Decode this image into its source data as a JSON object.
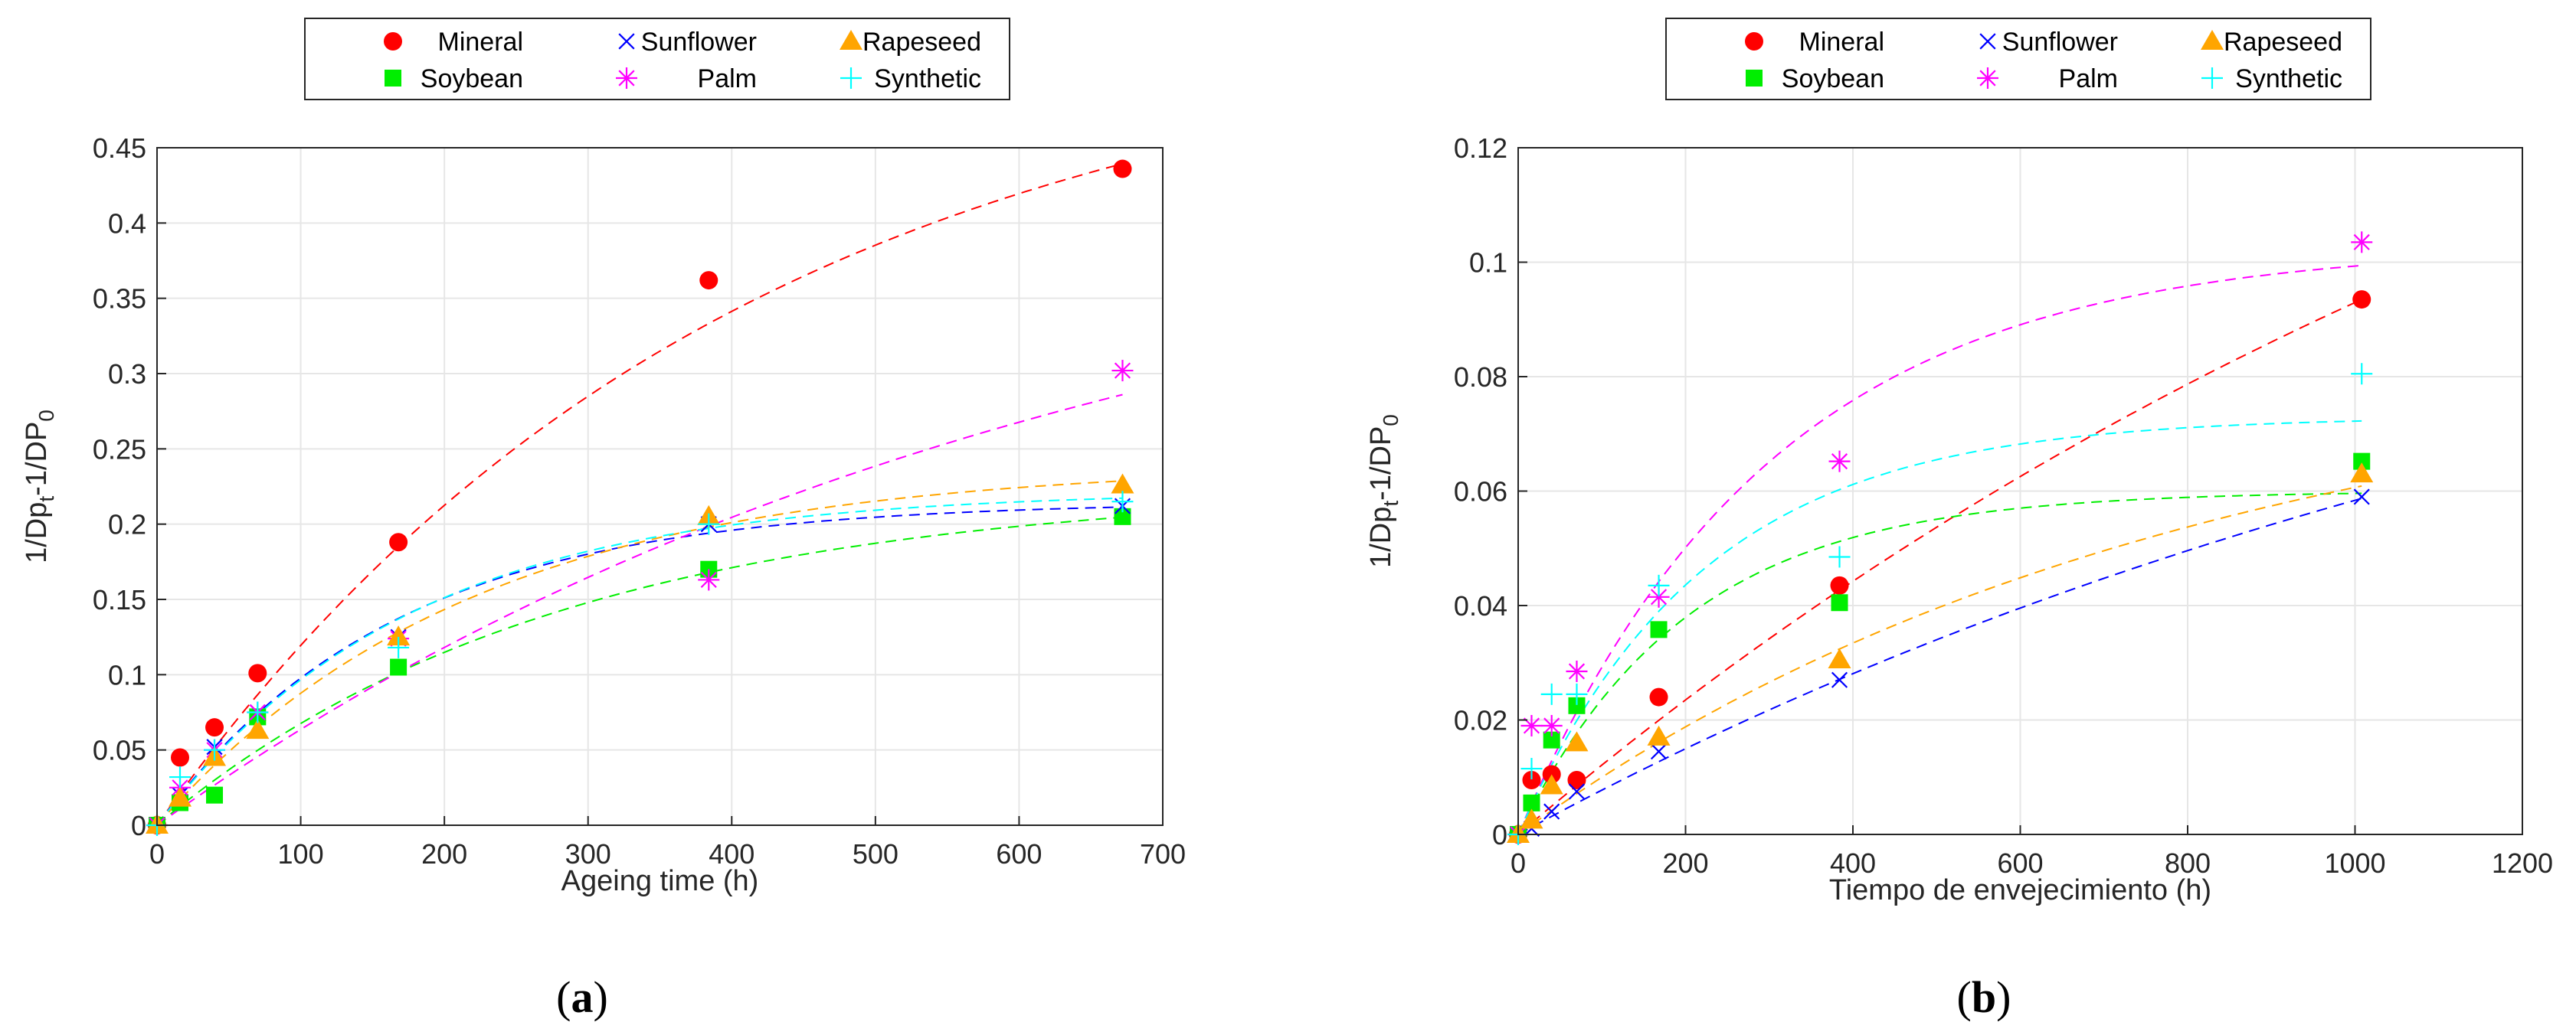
{
  "chart_data": [
    {
      "type": "scatter",
      "panel_label": "(a)",
      "panel_label_letter": "a",
      "xlabel": "Ageing time (h)",
      "ylabel_parts": [
        "1/Dp",
        "t",
        "-1/DP",
        "0"
      ],
      "xlim": [
        0,
        700
      ],
      "ylim": [
        0,
        0.45
      ],
      "xticks": [
        0,
        100,
        200,
        300,
        400,
        500,
        600,
        700
      ],
      "xtick_labels": [
        "0",
        "100",
        "200",
        "300",
        "400",
        "500",
        "600",
        "700"
      ],
      "yticks": [
        0,
        0.05,
        0.1,
        0.15,
        0.2,
        0.25,
        0.3,
        0.35,
        0.4,
        0.45
      ],
      "ytick_labels": [
        "0",
        "0.05",
        "0.1",
        "0.15",
        "0.2",
        "0.25",
        "0.3",
        "0.35",
        "0.4",
        "0.45"
      ],
      "grid": true,
      "legend_position": "top-outside",
      "series": [
        {
          "name": "Mineral",
          "marker": "circle",
          "color": "#ff0000",
          "x": [
            0,
            16,
            40,
            70,
            168,
            384,
            672
          ],
          "y": [
            0,
            0.045,
            0.065,
            0.101,
            0.188,
            0.362,
            0.436
          ],
          "fit_a": 0.54,
          "fit_tau": 400
        },
        {
          "name": "Soybean",
          "marker": "square",
          "color": "#00ee00",
          "x": [
            0,
            16,
            40,
            70,
            168,
            384,
            672
          ],
          "y": [
            0,
            0.015,
            0.02,
            0.072,
            0.105,
            0.17,
            0.205
          ],
          "fit_a": 0.225,
          "fit_tau": 280
        },
        {
          "name": "Sunflower",
          "marker": "x",
          "color": "#0000ff",
          "x": [
            0,
            16,
            40,
            70,
            168,
            384,
            672
          ],
          "y": [
            0,
            0.02,
            0.052,
            0.075,
            0.125,
            0.2,
            0.212
          ],
          "fit_a": 0.215,
          "fit_tau": 165
        },
        {
          "name": "Palm",
          "marker": "asterisk",
          "color": "#ff00ff",
          "x": [
            0,
            16,
            40,
            70,
            168,
            384,
            672
          ],
          "y": [
            0,
            0.025,
            0.05,
            0.075,
            0.124,
            0.163,
            0.302
          ],
          "fit_a": 0.44,
          "fit_tau": 640
        },
        {
          "name": "Rapeseed",
          "marker": "triangle",
          "color": "#ffa500",
          "x": [
            0,
            16,
            40,
            70,
            168,
            384,
            672
          ],
          "y": [
            0,
            0.018,
            0.045,
            0.063,
            0.125,
            0.205,
            0.226
          ],
          "fit_a": 0.24,
          "fit_tau": 220
        },
        {
          "name": "Synthetic",
          "marker": "plus",
          "color": "#00ffff",
          "x": [
            0,
            16,
            40,
            70,
            168,
            384,
            672
          ],
          "y": [
            0,
            0.032,
            0.05,
            0.075,
            0.118,
            0.2,
            0.215
          ],
          "fit_a": 0.222,
          "fit_tau": 175
        }
      ]
    },
    {
      "type": "scatter",
      "panel_label": "(b)",
      "panel_label_letter": "b",
      "xlabel": "Tiempo de envejecimiento (h)",
      "ylabel_parts": [
        "1/Dp",
        "t",
        "-1/DP",
        "0"
      ],
      "xlim": [
        0,
        1200
      ],
      "ylim": [
        0,
        0.12
      ],
      "xticks": [
        0,
        200,
        400,
        600,
        800,
        1000,
        1200
      ],
      "xtick_labels": [
        "0",
        "200",
        "400",
        "600",
        "800",
        "1000",
        "1200"
      ],
      "yticks": [
        0,
        0.02,
        0.04,
        0.06,
        0.08,
        0.1,
        0.12
      ],
      "ytick_labels": [
        "0",
        "0.02",
        "0.04",
        "0.06",
        "0.08",
        "0.1",
        "0.12"
      ],
      "grid": true,
      "legend_position": "top-outside",
      "series": [
        {
          "name": "Mineral",
          "marker": "circle",
          "color": "#ff0000",
          "x": [
            0,
            16,
            40,
            70,
            168,
            384,
            1008
          ],
          "y": [
            0,
            0.0095,
            0.0105,
            0.0095,
            0.024,
            0.0435,
            0.0935
          ],
          "fit_a": 0.2,
          "fit_tau": 1600
        },
        {
          "name": "Soybean",
          "marker": "square",
          "color": "#00ee00",
          "x": [
            0,
            16,
            40,
            70,
            168,
            384,
            1008
          ],
          "y": [
            0,
            0.0055,
            0.0165,
            0.0225,
            0.0358,
            0.0405,
            0.0652
          ],
          "fit_a": 0.06,
          "fit_tau": 200
        },
        {
          "name": "Sunflower",
          "marker": "x",
          "color": "#0000ff",
          "x": [
            0,
            16,
            40,
            70,
            168,
            384,
            1008
          ],
          "y": [
            0,
            0.001,
            0.004,
            0.0075,
            0.0145,
            0.027,
            0.059
          ],
          "fit_a": 0.12,
          "fit_tau": 1500
        },
        {
          "name": "Palm",
          "marker": "asterisk",
          "color": "#ff00ff",
          "x": [
            0,
            16,
            40,
            70,
            168,
            384,
            1008
          ],
          "y": [
            0,
            0.019,
            0.019,
            0.0285,
            0.0415,
            0.0652,
            0.1035
          ],
          "fit_a": 0.103,
          "fit_tau": 300
        },
        {
          "name": "Rapeseed",
          "marker": "triangle",
          "color": "#ffa500",
          "x": [
            0,
            16,
            40,
            70,
            168,
            384,
            1008
          ],
          "y": [
            0,
            0.0025,
            0.0085,
            0.016,
            0.017,
            0.0305,
            0.063
          ],
          "fit_a": 0.085,
          "fit_tau": 800
        },
        {
          "name": "Synthetic",
          "marker": "plus",
          "color": "#00ffff",
          "x": [
            0,
            16,
            40,
            70,
            168,
            384,
            1008
          ],
          "y": [
            0,
            0.0115,
            0.0245,
            0.0245,
            0.0435,
            0.0485,
            0.0805
          ],
          "fit_a": 0.073,
          "fit_tau": 220
        }
      ]
    }
  ]
}
